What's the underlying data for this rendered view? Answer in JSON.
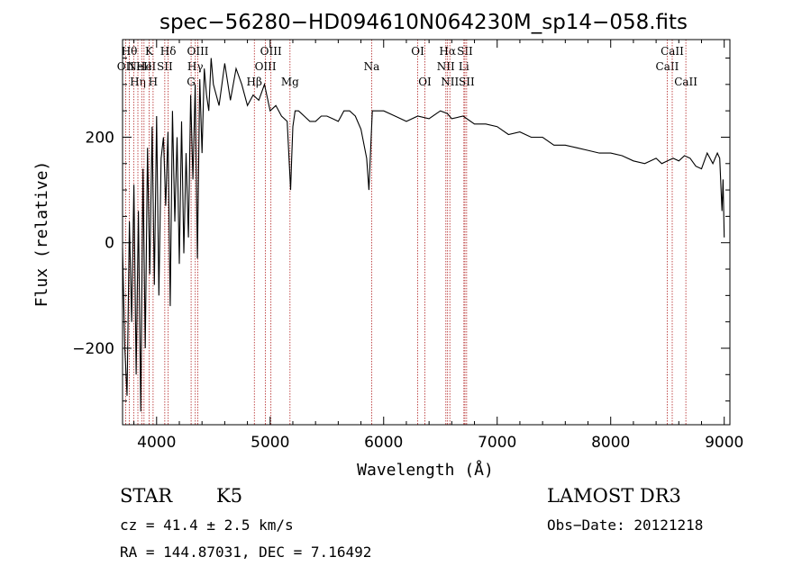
{
  "chart_data": {
    "type": "line",
    "title": "spec−56280−HD094610N064230M_sp14−058.fits",
    "xlabel": "Wavelength (Å)",
    "ylabel": "Flux (relative)",
    "xlim": [
      3700,
      9050
    ],
    "ylim": [
      -345,
      385
    ],
    "xticks": [
      4000,
      5000,
      6000,
      7000,
      8000,
      9000
    ],
    "yticks": [
      -200,
      0,
      200
    ],
    "ytick_labels": [
      "−200",
      "0",
      "200"
    ],
    "series": [
      {
        "name": "flux",
        "x": [
          3700,
          3720,
          3740,
          3760,
          3780,
          3800,
          3820,
          3840,
          3860,
          3880,
          3900,
          3920,
          3940,
          3960,
          3980,
          4000,
          4020,
          4040,
          4060,
          4080,
          4100,
          4120,
          4140,
          4160,
          4180,
          4200,
          4220,
          4240,
          4260,
          4280,
          4300,
          4320,
          4340,
          4360,
          4380,
          4400,
          4420,
          4440,
          4460,
          4480,
          4500,
          4550,
          4600,
          4650,
          4700,
          4750,
          4800,
          4850,
          4900,
          4950,
          5000,
          5050,
          5100,
          5150,
          5180,
          5190,
          5200,
          5220,
          5250,
          5300,
          5350,
          5400,
          5450,
          5500,
          5550,
          5600,
          5650,
          5700,
          5750,
          5800,
          5850,
          5870,
          5890,
          5900,
          5910,
          5950,
          6000,
          6100,
          6200,
          6300,
          6400,
          6500,
          6560,
          6600,
          6700,
          6800,
          6900,
          7000,
          7100,
          7200,
          7300,
          7400,
          7500,
          7600,
          7700,
          7800,
          7900,
          8000,
          8100,
          8200,
          8300,
          8400,
          8450,
          8500,
          8550,
          8600,
          8650,
          8700,
          8750,
          8800,
          8850,
          8900,
          8920,
          8940,
          8960,
          8980,
          8990,
          9000
        ],
        "values": [
          -10,
          -200,
          -290,
          40,
          -150,
          110,
          -250,
          60,
          -320,
          140,
          -200,
          180,
          -60,
          220,
          -80,
          240,
          -100,
          160,
          200,
          70,
          210,
          -120,
          250,
          40,
          200,
          -40,
          230,
          -20,
          170,
          10,
          280,
          120,
          300,
          -30,
          310,
          170,
          330,
          280,
          250,
          350,
          300,
          260,
          340,
          270,
          330,
          300,
          260,
          280,
          270,
          300,
          250,
          260,
          240,
          230,
          100,
          160,
          220,
          250,
          250,
          240,
          230,
          230,
          240,
          240,
          235,
          230,
          250,
          250,
          240,
          215,
          160,
          100,
          200,
          250,
          250,
          250,
          250,
          240,
          230,
          240,
          235,
          250,
          245,
          235,
          240,
          225,
          225,
          220,
          205,
          210,
          200,
          200,
          185,
          185,
          180,
          175,
          170,
          170,
          165,
          155,
          150,
          160,
          150,
          155,
          160,
          155,
          165,
          160,
          145,
          140,
          170,
          150,
          160,
          170,
          160,
          60,
          120,
          10
        ]
      }
    ],
    "reference_lines": [
      {
        "x": 3727,
        "label": "OII",
        "row": 2
      },
      {
        "x": 3760,
        "label": "Hθ",
        "row": 1
      },
      {
        "x": 3798,
        "label": "",
        "row": 1
      },
      {
        "x": 3835,
        "label": "Hη",
        "row": 3
      },
      {
        "x": 3869,
        "label": "NeIII",
        "row": 2
      },
      {
        "x": 3889,
        "label": "He",
        "row": 2
      },
      {
        "x": 3934,
        "label": "K",
        "row": 1
      },
      {
        "x": 3969,
        "label": "H",
        "row": 3
      },
      {
        "x": 4072,
        "label": "SII",
        "row": 2
      },
      {
        "x": 4102,
        "label": "Hδ",
        "row": 1
      },
      {
        "x": 4304,
        "label": "G",
        "row": 3
      },
      {
        "x": 4341,
        "label": "Hγ",
        "row": 2
      },
      {
        "x": 4363,
        "label": "OIII",
        "row": 1
      },
      {
        "x": 4861,
        "label": "Hβ",
        "row": 3
      },
      {
        "x": 4959,
        "label": "OIII",
        "row": 2
      },
      {
        "x": 5007,
        "label": "OIII",
        "row": 1
      },
      {
        "x": 5175,
        "label": "Mg",
        "row": 3
      },
      {
        "x": 5894,
        "label": "Na",
        "row": 2
      },
      {
        "x": 6300,
        "label": "OI",
        "row": 1
      },
      {
        "x": 6363,
        "label": "OI",
        "row": 3
      },
      {
        "x": 6548,
        "label": "NII",
        "row": 2
      },
      {
        "x": 6563,
        "label": "Hα",
        "row": 1
      },
      {
        "x": 6583,
        "label": "NII",
        "row": 3
      },
      {
        "x": 6707,
        "label": "Li",
        "row": 2
      },
      {
        "x": 6716,
        "label": "SII",
        "row": 1
      },
      {
        "x": 6731,
        "label": "SII",
        "row": 3
      },
      {
        "x": 8498,
        "label": "CaII",
        "row": 2
      },
      {
        "x": 8542,
        "label": "CaII",
        "row": 1
      },
      {
        "x": 8662,
        "label": "CaII",
        "row": 3
      }
    ]
  },
  "info": {
    "class": "STAR",
    "subclass": "K5",
    "survey": "LAMOST DR3",
    "cz": "cz = 41.4 ± 2.5 km/s",
    "obs_date": "Obs−Date: 20121218",
    "coords": "RA = 144.87031, DEC =    7.16492"
  }
}
